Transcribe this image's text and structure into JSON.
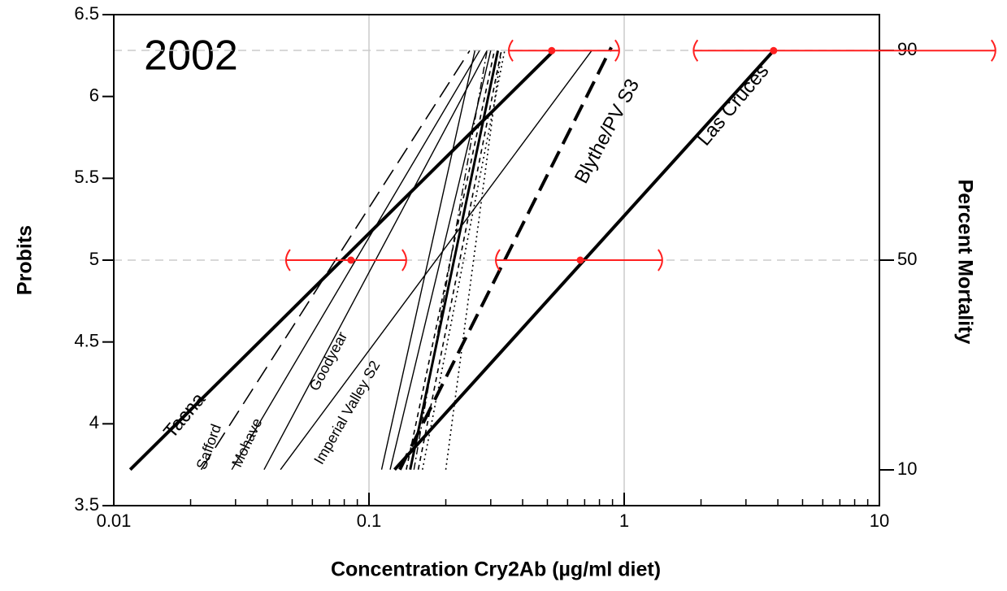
{
  "chart_data": {
    "type": "line",
    "annotation": "2002",
    "xlabel": "Concentration Cry2Ab (µg/ml diet)",
    "ylabel": "Probits",
    "y2label": "Percent Mortality",
    "xscale": "log",
    "xlim": [
      0.01,
      10
    ],
    "xticks": [
      0.01,
      0.1,
      1,
      10
    ],
    "ylim": [
      3.5,
      6.5
    ],
    "yticks": [
      3.5,
      4,
      4.5,
      5,
      5.5,
      6,
      6.5
    ],
    "y2scale": "probit",
    "y2ticks": [
      10,
      50,
      90
    ],
    "y2grid": [
      50,
      90
    ],
    "grid_color": "#cccccc",
    "series": [
      {
        "name": "Tacna",
        "color": "#000000",
        "dash": "solid",
        "width": 4,
        "x": [
          0.0116,
          0.53
        ],
        "values": [
          3.72,
          6.28
        ]
      },
      {
        "name": "Safford",
        "color": "#000000",
        "dash": "long",
        "width": 1.6,
        "x": [
          0.022,
          0.248
        ],
        "values": [
          3.72,
          6.28
        ]
      },
      {
        "name": "Mohave",
        "color": "#000000",
        "dash": "solid",
        "width": 1.4,
        "x": [
          0.029,
          0.271
        ],
        "values": [
          3.72,
          6.28
        ]
      },
      {
        "name": "Goodyear",
        "color": "#000000",
        "dash": "solid",
        "width": 1.4,
        "x": [
          0.0388,
          0.29
        ],
        "values": [
          3.72,
          6.28
        ]
      },
      {
        "name": "Imperial Valley S2",
        "color": "#000000",
        "dash": "solid",
        "width": 1.4,
        "x": [
          0.045,
          0.746
        ],
        "values": [
          3.72,
          6.28
        ]
      },
      {
        "color": "#000000",
        "dash": "solid",
        "width": 1.4,
        "x": [
          0.112,
          0.26
        ],
        "values": [
          3.72,
          6.28
        ]
      },
      {
        "color": "#000000",
        "dash": "solid",
        "width": 1.4,
        "x": [
          0.121,
          0.3
        ],
        "values": [
          3.72,
          6.28
        ]
      },
      {
        "color": "#000000",
        "dash": "short",
        "width": 1.6,
        "x": [
          0.14,
          0.31
        ],
        "values": [
          3.72,
          6.28
        ]
      },
      {
        "color": "#000000",
        "dash": "solid",
        "width": 3,
        "x": [
          0.145,
          0.32
        ],
        "values": [
          3.72,
          6.28
        ]
      },
      {
        "color": "#000000",
        "dash": "dashdot",
        "width": 1.4,
        "x": [
          0.15,
          0.29
        ],
        "values": [
          3.72,
          6.28
        ]
      },
      {
        "color": "#000000",
        "dash": "short",
        "width": 1.6,
        "x": [
          0.156,
          0.33
        ],
        "values": [
          3.72,
          6.28
        ]
      },
      {
        "color": "#000000",
        "dash": "dot",
        "width": 1.6,
        "x": [
          0.162,
          0.34
        ],
        "values": [
          3.72,
          6.28
        ]
      },
      {
        "color": "#000000",
        "dash": "dot",
        "width": 1.6,
        "x": [
          0.2,
          0.33
        ],
        "values": [
          3.72,
          6.28
        ]
      },
      {
        "name": "Blythe/PV S3",
        "color": "#000000",
        "dash": "long",
        "width": 4,
        "x": [
          0.132,
          0.89
        ],
        "values": [
          3.72,
          6.3
        ]
      },
      {
        "name": "Las Cruces",
        "color": "#000000",
        "dash": "solid",
        "width": 4,
        "x": [
          0.126,
          3.85
        ],
        "values": [
          3.72,
          6.28
        ]
      }
    ],
    "error_bars": {
      "color": "#ff2020",
      "intervals": [
        {
          "x": 0.085,
          "low": 0.0473,
          "high": 0.14,
          "y": 5
        },
        {
          "x": 0.673,
          "low": 0.314,
          "high": 1.41,
          "y": 5
        },
        {
          "x": 0.52,
          "low": 0.353,
          "high": 0.956,
          "y": 6.28
        },
        {
          "x": 3.85,
          "low": 1.87,
          "high": 28.5,
          "y": 6.28
        }
      ]
    }
  }
}
